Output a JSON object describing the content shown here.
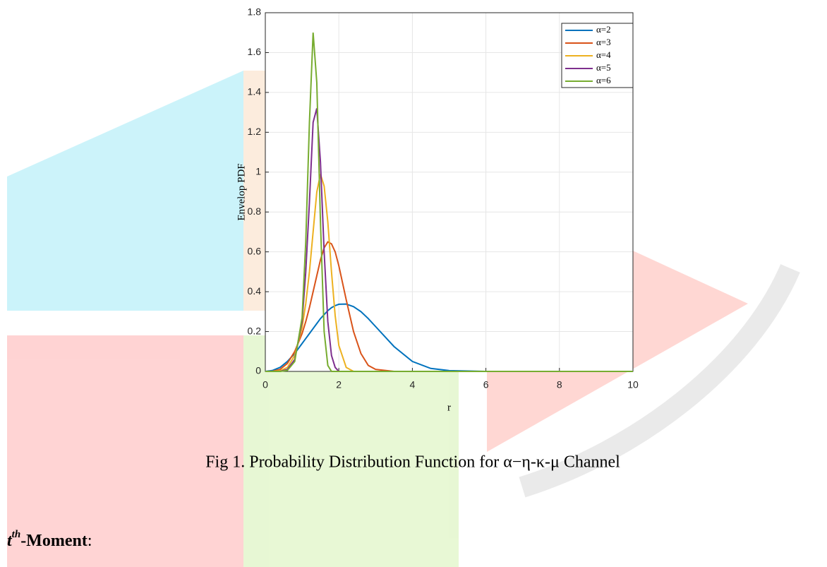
{
  "chart_data": {
    "type": "line",
    "ylabel": "Envelop PDF",
    "xlabel": "r",
    "x": [
      0,
      0.2,
      0.4,
      0.6,
      0.8,
      1.0,
      1.1,
      1.2,
      1.3,
      1.4,
      1.5,
      1.6,
      1.7,
      1.8,
      1.9,
      2.0,
      2.2,
      2.4,
      2.6,
      2.8,
      3.0,
      3.5,
      4.0,
      4.5,
      5,
      6,
      8,
      10
    ],
    "series": [
      {
        "name": "α=2",
        "color": "#0072bd",
        "values": [
          0,
          0.005,
          0.02,
          0.05,
          0.09,
          0.14,
          0.165,
          0.19,
          0.215,
          0.24,
          0.265,
          0.285,
          0.305,
          0.32,
          0.33,
          0.337,
          0.338,
          0.325,
          0.3,
          0.265,
          0.225,
          0.125,
          0.05,
          0.015,
          0.004,
          0,
          0,
          0
        ]
      },
      {
        "name": "α=3",
        "color": "#d95319",
        "values": [
          0,
          0.001,
          0.01,
          0.04,
          0.1,
          0.19,
          0.25,
          0.32,
          0.4,
          0.48,
          0.56,
          0.62,
          0.65,
          0.64,
          0.6,
          0.53,
          0.36,
          0.2,
          0.09,
          0.03,
          0.01,
          0,
          0,
          0,
          0,
          0,
          0,
          0
        ]
      },
      {
        "name": "α=4",
        "color": "#edb120",
        "values": [
          0,
          0,
          0.003,
          0.02,
          0.08,
          0.22,
          0.34,
          0.5,
          0.7,
          0.9,
          0.99,
          0.93,
          0.75,
          0.5,
          0.28,
          0.13,
          0.02,
          0,
          0,
          0,
          0,
          0,
          0,
          0,
          0,
          0,
          0,
          0
        ]
      },
      {
        "name": "α=5",
        "color": "#7e2f8e",
        "values": [
          0,
          0,
          0,
          0.01,
          0.06,
          0.25,
          0.5,
          0.85,
          1.25,
          1.32,
          1.05,
          0.6,
          0.25,
          0.08,
          0.02,
          0,
          0,
          0,
          0,
          0,
          0,
          0,
          0,
          0,
          0,
          0,
          0,
          0
        ]
      },
      {
        "name": "α=6",
        "color": "#77ac30",
        "values": [
          0,
          0,
          0,
          0.005,
          0.05,
          0.27,
          0.65,
          1.25,
          1.7,
          1.45,
          0.75,
          0.2,
          0.03,
          0,
          0,
          0,
          0,
          0,
          0,
          0,
          0,
          0,
          0,
          0,
          0,
          0,
          0,
          0
        ]
      }
    ],
    "xlim": [
      0,
      10
    ],
    "xticks": [
      0,
      2,
      4,
      6,
      8,
      10
    ],
    "ylim": [
      0,
      1.8
    ],
    "yticks": [
      0,
      0.2,
      0.4,
      0.6,
      0.8,
      1,
      1.2,
      1.4,
      1.6,
      1.8
    ],
    "grid": true,
    "legend": "upper right"
  },
  "caption": "Fig 1. Probability Distribution Function for α−η-κ-μ Channel",
  "heading": {
    "symbol": "t",
    "superscript": "th",
    "text": "-Moment",
    "punct": ":"
  }
}
